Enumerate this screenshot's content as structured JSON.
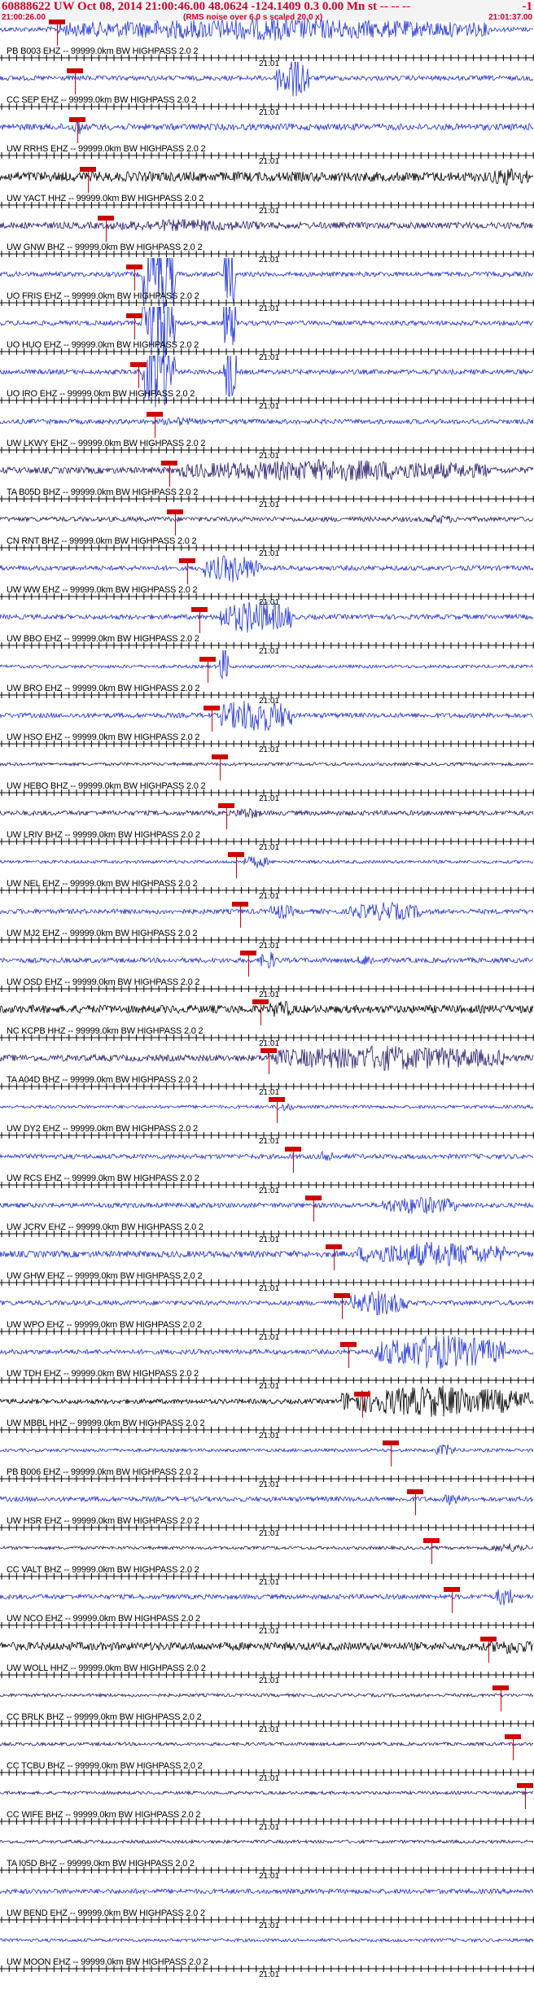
{
  "header": {
    "title": "60888622 UW Oct 08, 2014 21:00:46.00   48.0624 -124.1409  0.3 0.00 Mn st",
    "title_tail": "-- -- --",
    "right_flag": "-1",
    "subtitle": "(RMS noise over 6.0 s scaled 20.0 x)",
    "start_time": "21:00:26.00",
    "end_time": "21:01:37.00"
  },
  "minute_label": "21:01",
  "colors": {
    "blue": "#1f32d8",
    "navy": "#2a1a6a",
    "black": "#000000",
    "pick": "#d00000"
  },
  "traces": [
    {
      "label": "PB B003 EHZ -- 99999.0km BW  HIGHPASS  2.0  2",
      "color": "blue"
    },
    {
      "label": "CC SEP EHZ -- 99999.0km BW  HIGHPASS  2.0  2",
      "color": "blue"
    },
    {
      "label": "UW RRHS EHZ -- 99999.0km BW  HIGHPASS  2.0  2",
      "color": "blue"
    },
    {
      "label": "UW YACT HHZ -- 99999.0km BW  HIGHPASS  2.0  2",
      "color": "black"
    },
    {
      "label": "UW GNW BHZ -- 99999.0km BW  HIGHPASS  2.0  2",
      "color": "navy"
    },
    {
      "label": "UO FRIS EHZ -- 99999.0km BW  HIGHPASS  2.0  2",
      "color": "blue"
    },
    {
      "label": "UO HUO EHZ -- 99999.0km BW  HIGHPASS  2.0  2",
      "color": "blue"
    },
    {
      "label": "UO IRO EHZ -- 99999.0km BW  HIGHPASS  2.0  2",
      "color": "blue"
    },
    {
      "label": "UW LKWY EHZ -- 99999.0km BW  HIGHPASS  2.0  2",
      "color": "blue"
    },
    {
      "label": "TA B05D BHZ -- 99999.0km BW  HIGHPASS  2.0  2",
      "color": "navy"
    },
    {
      "label": "CN RNT BHZ -- 99999.0km BW  HIGHPASS  2.0  2",
      "color": "navy"
    },
    {
      "label": "UW WW EHZ -- 99999.0km BW  HIGHPASS  2.0  2",
      "color": "blue"
    },
    {
      "label": "UW BBO EHZ -- 99999.0km BW  HIGHPASS  2.0  2",
      "color": "blue"
    },
    {
      "label": "UW BRO EHZ -- 99999.0km BW  HIGHPASS  2.0  2",
      "color": "blue"
    },
    {
      "label": "UW HSO EHZ -- 99999.0km BW  HIGHPASS  2.0  2",
      "color": "blue"
    },
    {
      "label": "UW HEBO BHZ -- 99999.0km BW  HIGHPASS  2.0  2",
      "color": "navy"
    },
    {
      "label": "UW LRIV BHZ -- 99999.0km BW  HIGHPASS  2.0  2",
      "color": "navy"
    },
    {
      "label": "UW NEL EHZ -- 99999.0km BW  HIGHPASS  2.0  2",
      "color": "blue"
    },
    {
      "label": "UW MJ2 EHZ -- 99999.0km BW  HIGHPASS  2.0  2",
      "color": "blue"
    },
    {
      "label": "UW OSD EHZ -- 99999.0km BW  HIGHPASS  2.0  2",
      "color": "blue"
    },
    {
      "label": "NC KCPB HHZ -- 99999.0km BW  HIGHPASS  2.0  2",
      "color": "black"
    },
    {
      "label": "TA A04D BHZ -- 99999.0km BW  HIGHPASS  2.0  2",
      "color": "navy"
    },
    {
      "label": "UW DY2 EHZ -- 99999.0km BW  HIGHPASS  2.0  2",
      "color": "blue"
    },
    {
      "label": "UW RCS EHZ -- 99999.0km BW  HIGHPASS  2.0  2",
      "color": "blue"
    },
    {
      "label": "UW JCRV EHZ -- 99999.0km BW  HIGHPASS  2.0  2",
      "color": "blue"
    },
    {
      "label": "UW GHW EHZ -- 99999.0km BW  HIGHPASS  2.0  2",
      "color": "blue"
    },
    {
      "label": "UW WPO EHZ -- 99999.0km BW  HIGHPASS  2.0  2",
      "color": "blue"
    },
    {
      "label": "UW TDH EHZ -- 99999.0km BW  HIGHPASS  2.0  2",
      "color": "blue"
    },
    {
      "label": "UW MBBL HHZ -- 99999.0km BW  HIGHPASS  2.0  2",
      "color": "black"
    },
    {
      "label": "PB B006 EHZ -- 99999.0km BW  HIGHPASS  2.0  2",
      "color": "blue"
    },
    {
      "label": "UW HSR EHZ -- 99999.0km BW  HIGHPASS  2.0  2",
      "color": "blue"
    },
    {
      "label": "CC VALT BHZ -- 99999.0km BW  HIGHPASS  2.0  2",
      "color": "navy"
    },
    {
      "label": "UW NCO EHZ -- 99999.0km BW  HIGHPASS  2.0  2",
      "color": "blue"
    },
    {
      "label": "UW WOLL HHZ -- 99999.0km BW  HIGHPASS  2.0  2",
      "color": "black"
    },
    {
      "label": "CC BRLK BHZ -- 99999.0km BW  HIGHPASS  2.0  2",
      "color": "navy"
    },
    {
      "label": "CC TCBU BHZ -- 99999.0km BW  HIGHPASS  2.0  2",
      "color": "navy"
    },
    {
      "label": "CC WIFE BHZ -- 99999.0km BW  HIGHPASS  2.0  2",
      "color": "navy"
    },
    {
      "label": "TA I05D BHZ -- 99999.0km BW  HIGHPASS  2.0  2",
      "color": "navy"
    },
    {
      "label": "UW BEND EHZ -- 99999.0km BW  HIGHPASS  2.0  2",
      "color": "blue"
    },
    {
      "label": "UW MOON EHZ -- 99999.0km BW  HIGHPASS  2.0  2",
      "color": "blue"
    }
  ]
}
